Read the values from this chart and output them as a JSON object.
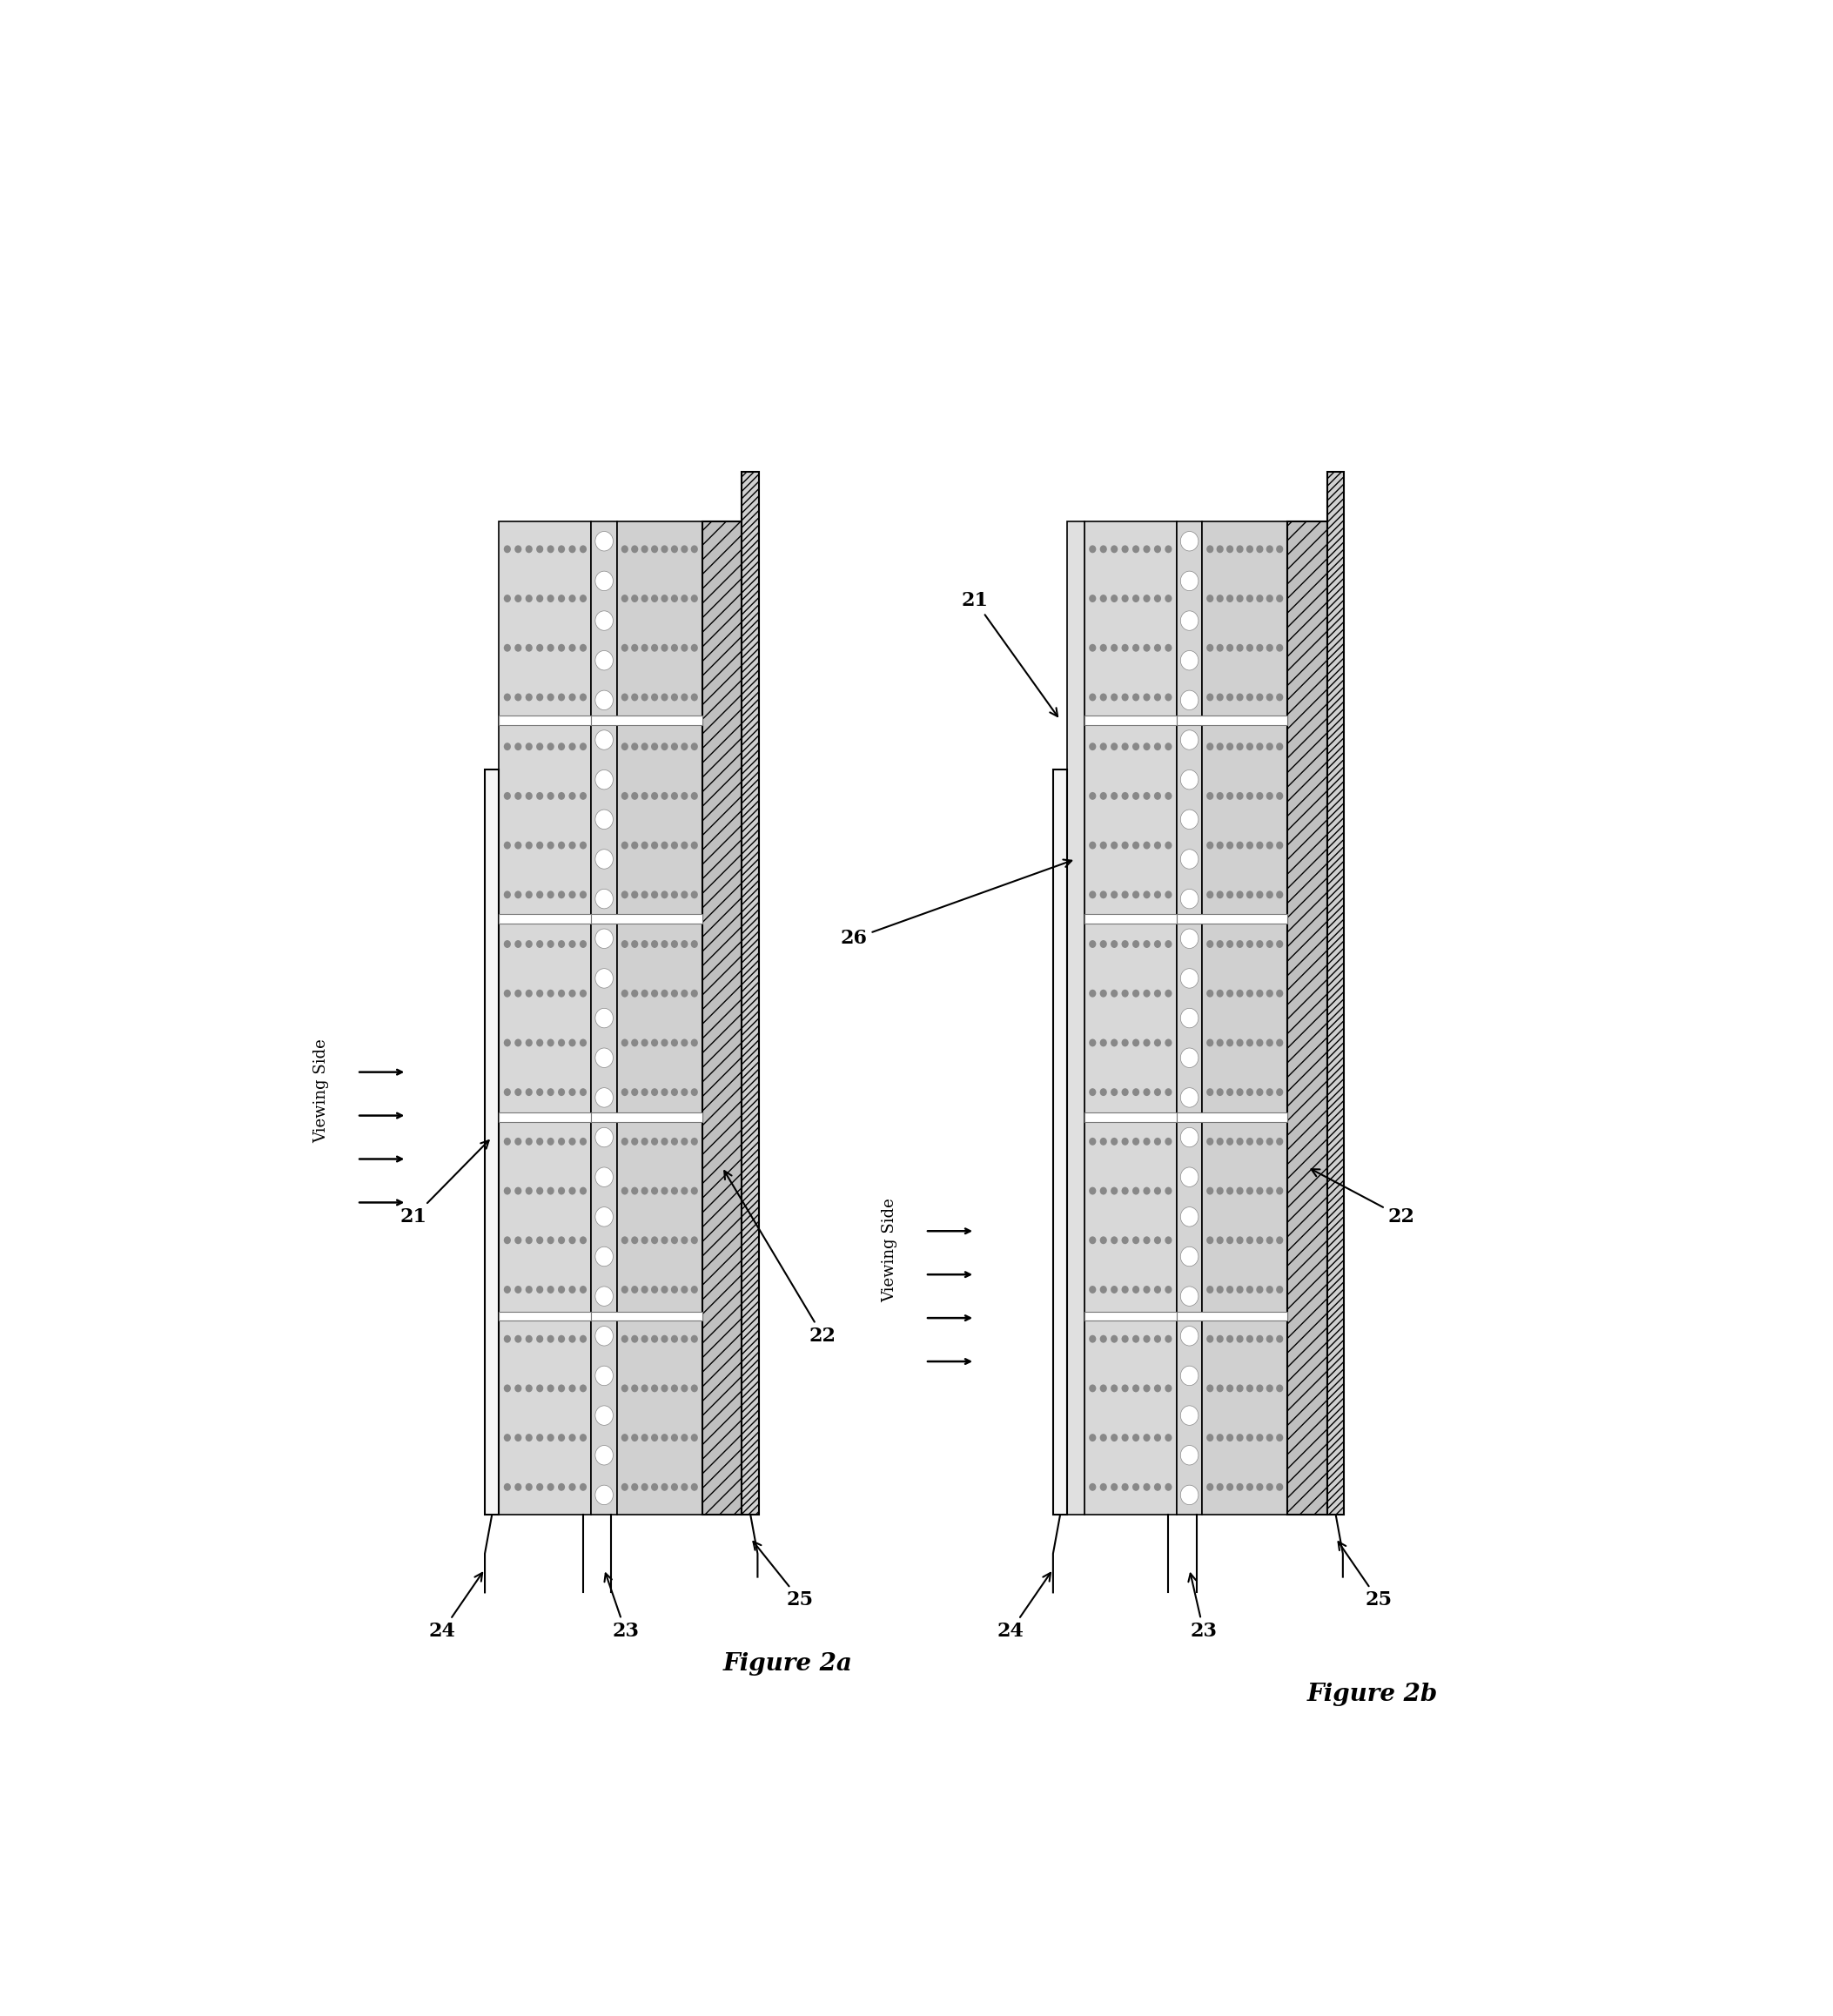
{
  "fig_width": 21.06,
  "fig_height": 23.16,
  "bg": "#ffffff",
  "fig2a_title": "Figure 2a",
  "fig2b_title": "Figure 2b",
  "viewing_label": "Viewing Side",
  "n_rows": 5,
  "colors": {
    "front_plate": "#f5f5f5",
    "left_cell": "#d8d8d8",
    "bubble_col": "#cccccc",
    "right_cell": "#d0d0d0",
    "hatch_layer": "#c0c0c0",
    "back_plate": "#b8b8b8",
    "separator": "#ffffff",
    "layer26": "#e0e0e0"
  }
}
